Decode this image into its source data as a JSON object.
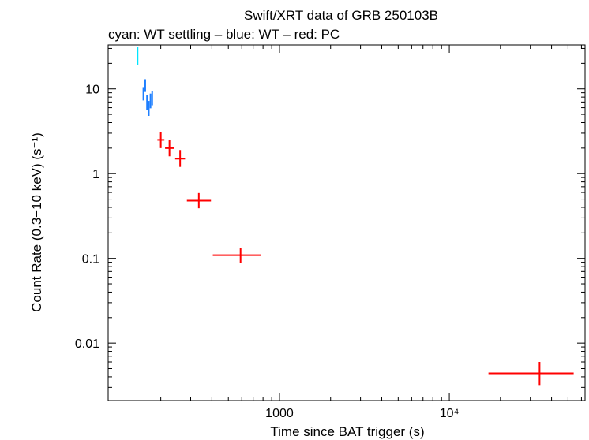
{
  "chart_data": {
    "type": "scatter",
    "title": "Swift/XRT data of GRB 250103B",
    "subtitle": "cyan: WT settling – blue: WT – red: PC",
    "xlabel": "Time since BAT trigger (s)",
    "ylabel": "Count Rate (0.3−10 keV) (s⁻¹)",
    "x_scale": "log",
    "y_scale": "log",
    "xlim": [
      98,
      63000
    ],
    "ylim": [
      0.0021,
      33
    ],
    "x_ticks": [
      {
        "value": 1000,
        "label": "1000"
      },
      {
        "value": 10000,
        "label": "10⁴"
      }
    ],
    "y_ticks": [
      {
        "value": 0.01,
        "label": "0.01"
      },
      {
        "value": 0.1,
        "label": "0.1"
      },
      {
        "value": 1,
        "label": "1"
      },
      {
        "value": 10,
        "label": "10"
      }
    ],
    "grid": false,
    "series": [
      {
        "color": "#00e5ff",
        "points": [
          {
            "x": 146,
            "xlo": 146,
            "xhi": 146,
            "y": 24,
            "ylo": 19,
            "yhi": 31
          }
        ]
      },
      {
        "color": "#1e7fff",
        "points": [
          {
            "x": 158,
            "xlo": 157,
            "xhi": 159,
            "y": 8.8,
            "ylo": 7.3,
            "yhi": 10.5
          },
          {
            "x": 162,
            "xlo": 161,
            "xhi": 163,
            "y": 11.0,
            "ylo": 9.2,
            "yhi": 13.0
          },
          {
            "x": 166,
            "xlo": 165,
            "xhi": 167,
            "y": 6.9,
            "ylo": 5.6,
            "yhi": 8.4
          },
          {
            "x": 170,
            "xlo": 169,
            "xhi": 171,
            "y": 5.9,
            "ylo": 4.8,
            "yhi": 7.2
          },
          {
            "x": 174,
            "xlo": 173,
            "xhi": 175,
            "y": 7.2,
            "ylo": 5.9,
            "yhi": 8.8
          },
          {
            "x": 178,
            "xlo": 177,
            "xhi": 179,
            "y": 7.8,
            "ylo": 6.4,
            "yhi": 9.4
          }
        ]
      },
      {
        "color": "#ff0000",
        "points": [
          {
            "x": 200,
            "xlo": 191,
            "xhi": 210,
            "y": 2.5,
            "ylo": 2.0,
            "yhi": 3.1
          },
          {
            "x": 225,
            "xlo": 212,
            "xhi": 239,
            "y": 2.0,
            "ylo": 1.6,
            "yhi": 2.5
          },
          {
            "x": 260,
            "xlo": 243,
            "xhi": 278,
            "y": 1.5,
            "ylo": 1.2,
            "yhi": 1.9
          },
          {
            "x": 335,
            "xlo": 285,
            "xhi": 395,
            "y": 0.48,
            "ylo": 0.39,
            "yhi": 0.59
          },
          {
            "x": 590,
            "xlo": 405,
            "xhi": 780,
            "y": 0.109,
            "ylo": 0.088,
            "yhi": 0.133
          },
          {
            "x": 34000,
            "xlo": 17000,
            "xhi": 54000,
            "y": 0.0044,
            "ylo": 0.0032,
            "yhi": 0.006
          }
        ]
      }
    ]
  }
}
